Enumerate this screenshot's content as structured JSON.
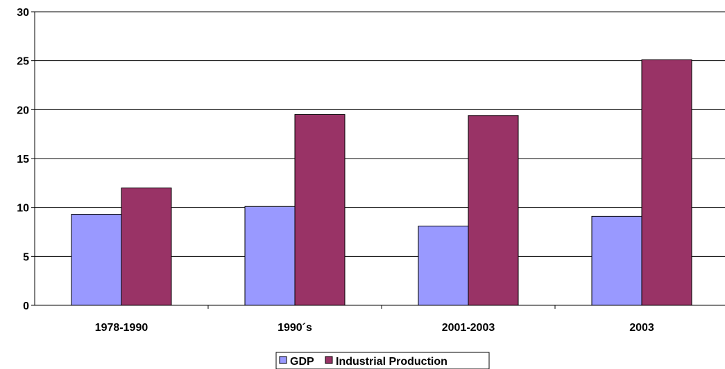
{
  "chart_data": {
    "type": "bar",
    "categories": [
      "1978-1990",
      "1990´s",
      "2001-2003",
      "2003"
    ],
    "series": [
      {
        "name": "GDP",
        "values": [
          9.3,
          10.1,
          8.1,
          9.1
        ],
        "color": "#9999ff"
      },
      {
        "name": "Industrial Production",
        "values": [
          12.0,
          19.5,
          19.4,
          25.1
        ],
        "color": "#993366"
      }
    ],
    "title": "",
    "xlabel": "",
    "ylabel": "",
    "ylim": [
      0,
      30
    ],
    "yticks": [
      0,
      5,
      10,
      15,
      20,
      25,
      30
    ],
    "grid": true,
    "legend_position": "bottom"
  }
}
